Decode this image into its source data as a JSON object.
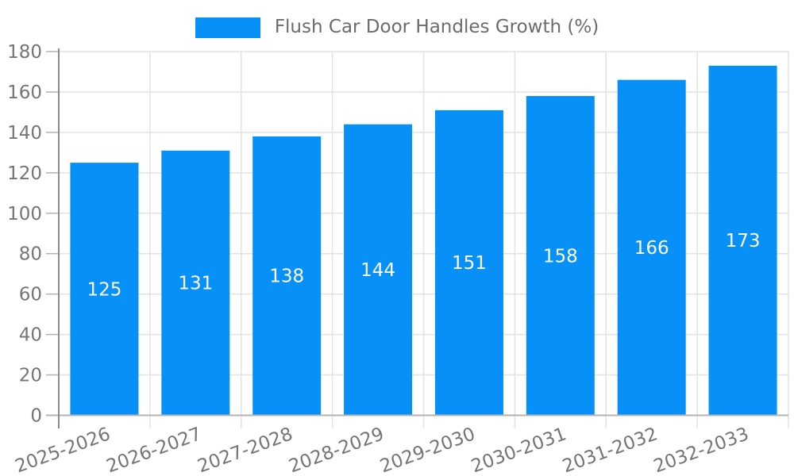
{
  "chart_data": {
    "type": "bar",
    "title": "",
    "legend_label": "Flush Car Door Handles Growth (%)",
    "legend_position": "top",
    "categories": [
      "2025-2026",
      "2026-2027",
      "2027-2028",
      "2028-2029",
      "2029-2030",
      "2030-2031",
      "2031-2032",
      "2032-2033"
    ],
    "values": [
      125,
      131,
      138,
      144,
      151,
      158,
      166,
      173
    ],
    "ylim": [
      0,
      180
    ],
    "ytick_step": 20,
    "ytick_labels": [
      "0",
      "20",
      "40",
      "60",
      "80",
      "100",
      "120",
      "140",
      "160",
      "180"
    ],
    "grid": true,
    "bar_labels_inside": true,
    "x_label_rotation_deg": -20,
    "colors": {
      "bar": "#0791f8",
      "bar_label_text": "#ffffff",
      "axis_text": "#757575",
      "legend_text": "#6b6b6b",
      "gridline": "#e2e2e2",
      "y_axis_line": "#8c8c8c",
      "x_axis_line": "#b3b3b3",
      "tick": "#b3b3b3",
      "background": "#ffffff"
    }
  }
}
